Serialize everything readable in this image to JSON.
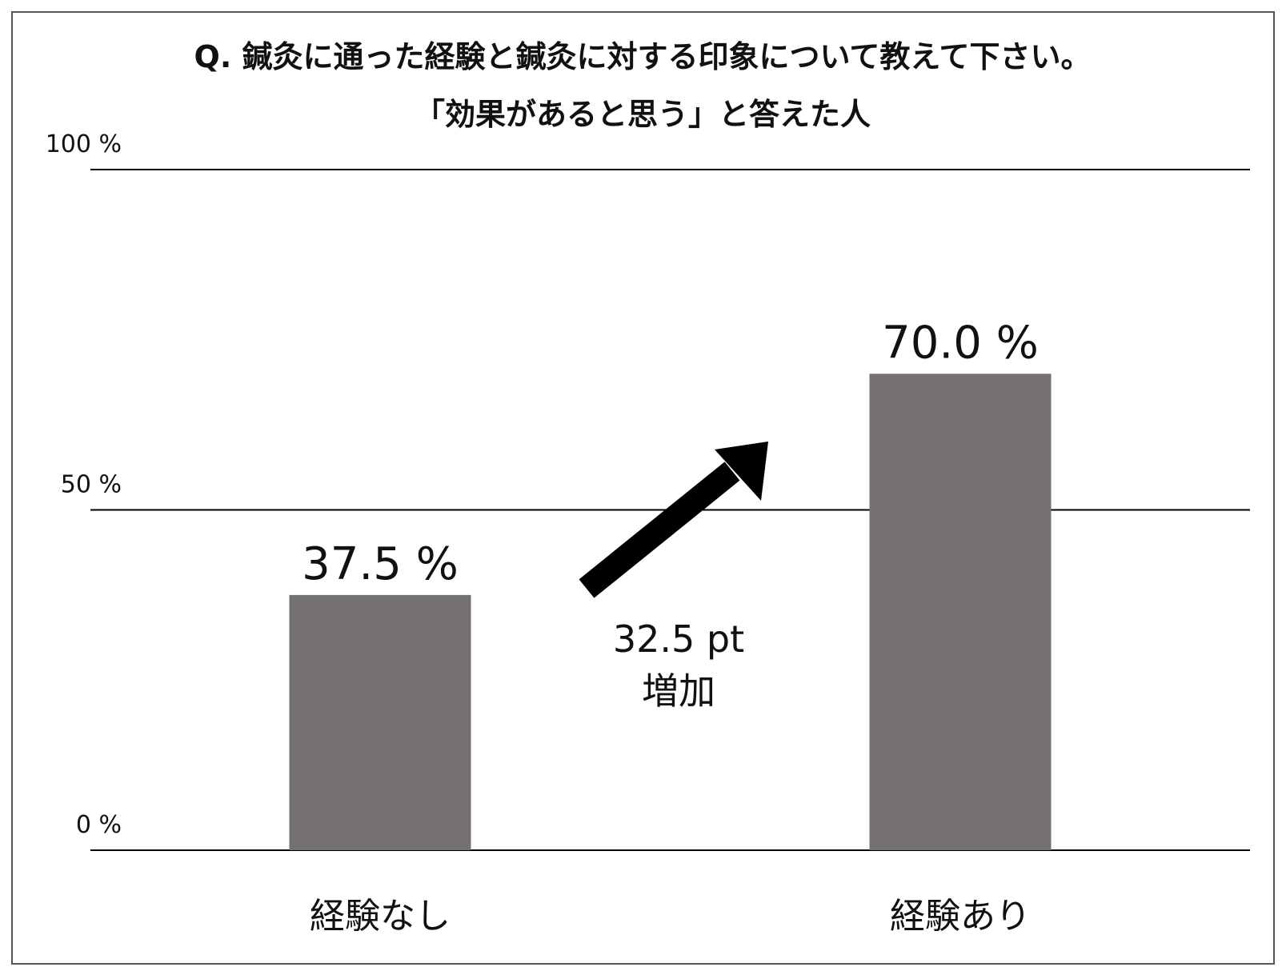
{
  "chart_data": {
    "type": "bar",
    "title": "Q. 鍼灸に通った経験と鍼灸に対する印象について教えて下さい。",
    "subtitle": "「効果があると思う」と答えた人",
    "categories": [
      "経験なし",
      "経験あり"
    ],
    "values": [
      37.5,
      70.0
    ],
    "value_labels": [
      "37.5 %",
      "70.0 %"
    ],
    "color": "#767171",
    "ylim": [
      0,
      100
    ],
    "yticks": [
      {
        "value": 0,
        "label": "0 %"
      },
      {
        "value": 50,
        "label": "50 %"
      },
      {
        "value": 100,
        "label": "100 %"
      }
    ],
    "grid": true,
    "annotations": [
      "32.5 pt",
      "増加"
    ]
  }
}
